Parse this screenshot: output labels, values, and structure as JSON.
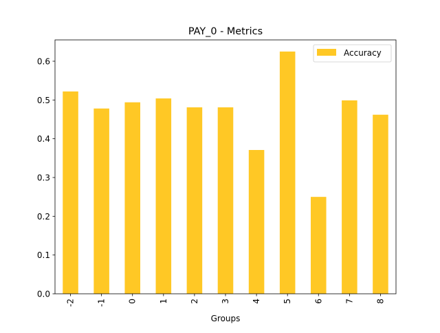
{
  "chart_data": {
    "type": "bar",
    "title": "PAY_0 - Metrics",
    "xlabel": "Groups",
    "ylabel": "",
    "categories": [
      "-2",
      "-1",
      "0",
      "1",
      "2",
      "3",
      "4",
      "5",
      "6",
      "7",
      "8"
    ],
    "series": [
      {
        "name": "Accuracy",
        "color": "#ffc825",
        "values": [
          0.522,
          0.478,
          0.494,
          0.504,
          0.481,
          0.481,
          0.371,
          0.625,
          0.25,
          0.499,
          0.462
        ]
      }
    ],
    "ylim": [
      0,
      0.655
    ],
    "yticks": [
      "0.0",
      "0.1",
      "0.2",
      "0.3",
      "0.4",
      "0.5",
      "0.6"
    ],
    "grid": false,
    "legend": "top-right"
  }
}
